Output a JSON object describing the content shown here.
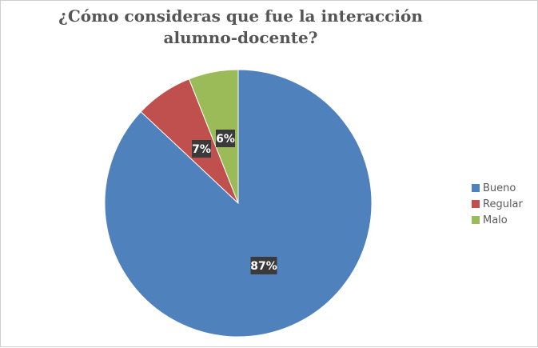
{
  "chart_data": {
    "type": "pie",
    "title": "¿Cómo consideras que fue la interacción alumno-docente?",
    "categories": [
      "Bueno",
      "Regular",
      "Malo"
    ],
    "values": [
      87,
      7,
      6
    ],
    "labels": [
      "87%",
      "7%",
      "6%"
    ],
    "colors": [
      "#4f81bd",
      "#c0504d",
      "#9bbb59"
    ],
    "legend_position": "right"
  }
}
